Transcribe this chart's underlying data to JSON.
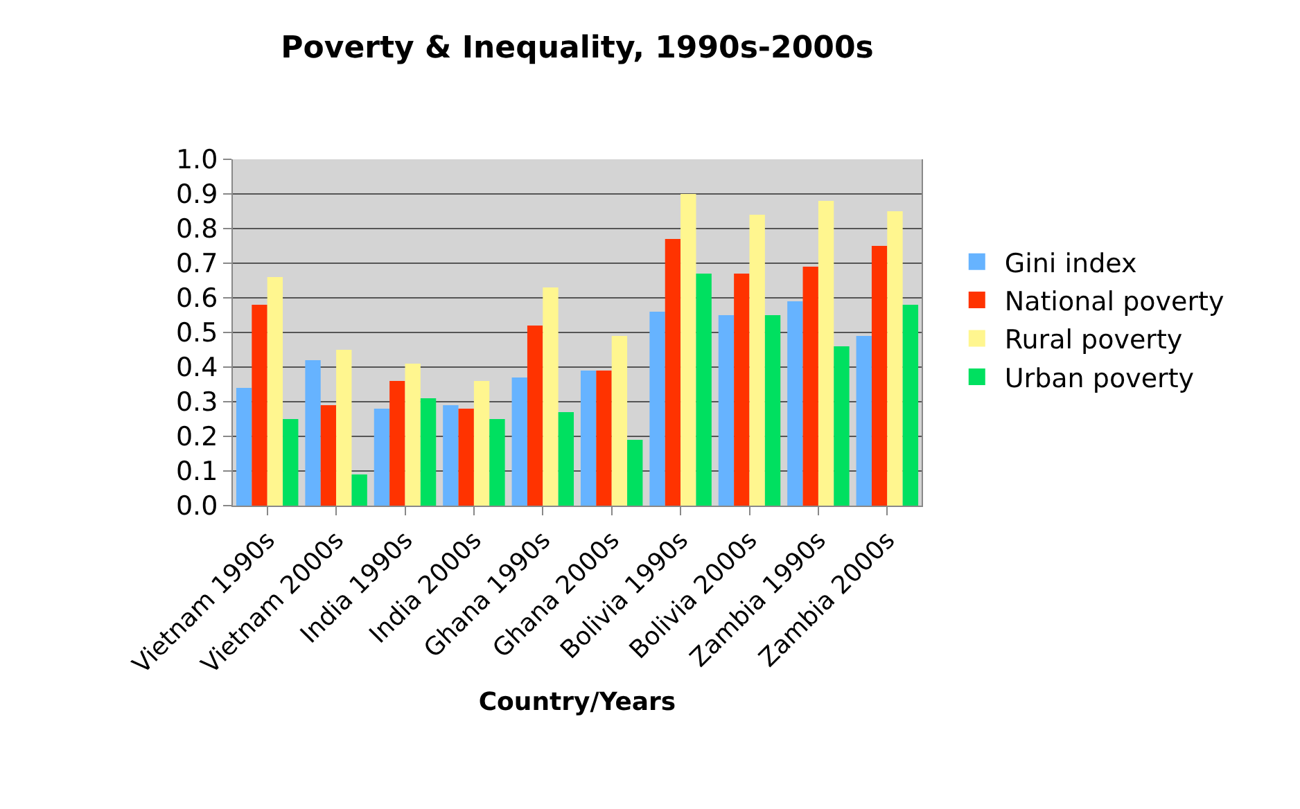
{
  "chart_data": {
    "type": "bar",
    "title": "Poverty & Inequality, 1990s-2000s",
    "xlabel": "Country/Years",
    "categories": [
      "Vietnam 1990s",
      "Vietnam 2000s",
      "India 1990s",
      "India 2000s",
      "Ghana 1990s",
      "Ghana 2000s",
      "Bolivia 1990s",
      "Bolivia 2000s",
      "Zambia 1990s",
      "Zambia 2000s"
    ],
    "series": [
      {
        "name": "Gini index",
        "color": "#66b3ff",
        "values": [
          0.34,
          0.42,
          0.28,
          0.29,
          0.37,
          0.39,
          0.56,
          0.55,
          0.59,
          0.49
        ]
      },
      {
        "name": "National poverty",
        "color": "#ff3300",
        "values": [
          0.58,
          0.29,
          0.36,
          0.28,
          0.52,
          0.39,
          0.77,
          0.67,
          0.69,
          0.75
        ]
      },
      {
        "name": "Rural poverty",
        "color": "#fff68f",
        "values": [
          0.66,
          0.45,
          0.41,
          0.36,
          0.63,
          0.49,
          0.9,
          0.84,
          0.88,
          0.85
        ]
      },
      {
        "name": "Urban poverty",
        "color": "#00e060",
        "values": [
          0.25,
          0.09,
          0.31,
          0.25,
          0.27,
          0.19,
          0.67,
          0.55,
          0.46,
          0.58
        ]
      }
    ],
    "ylim": [
      0,
      1
    ],
    "yticks": [
      {
        "value": 0,
        "label": "0.0"
      },
      {
        "value": 0.1,
        "label": "0.1"
      },
      {
        "value": 0.2,
        "label": "0.2"
      },
      {
        "value": 0.3,
        "label": "0.3"
      },
      {
        "value": 0.4,
        "label": "0.4"
      },
      {
        "value": 0.5,
        "label": "0.5"
      },
      {
        "value": 0.6,
        "label": "0.6"
      },
      {
        "value": 0.7,
        "label": "0.7"
      },
      {
        "value": 0.8,
        "label": "0.8"
      },
      {
        "value": 0.9,
        "label": "0.9"
      },
      {
        "value": 1,
        "label": "1.0"
      }
    ],
    "grid": "y",
    "legend": "right"
  }
}
